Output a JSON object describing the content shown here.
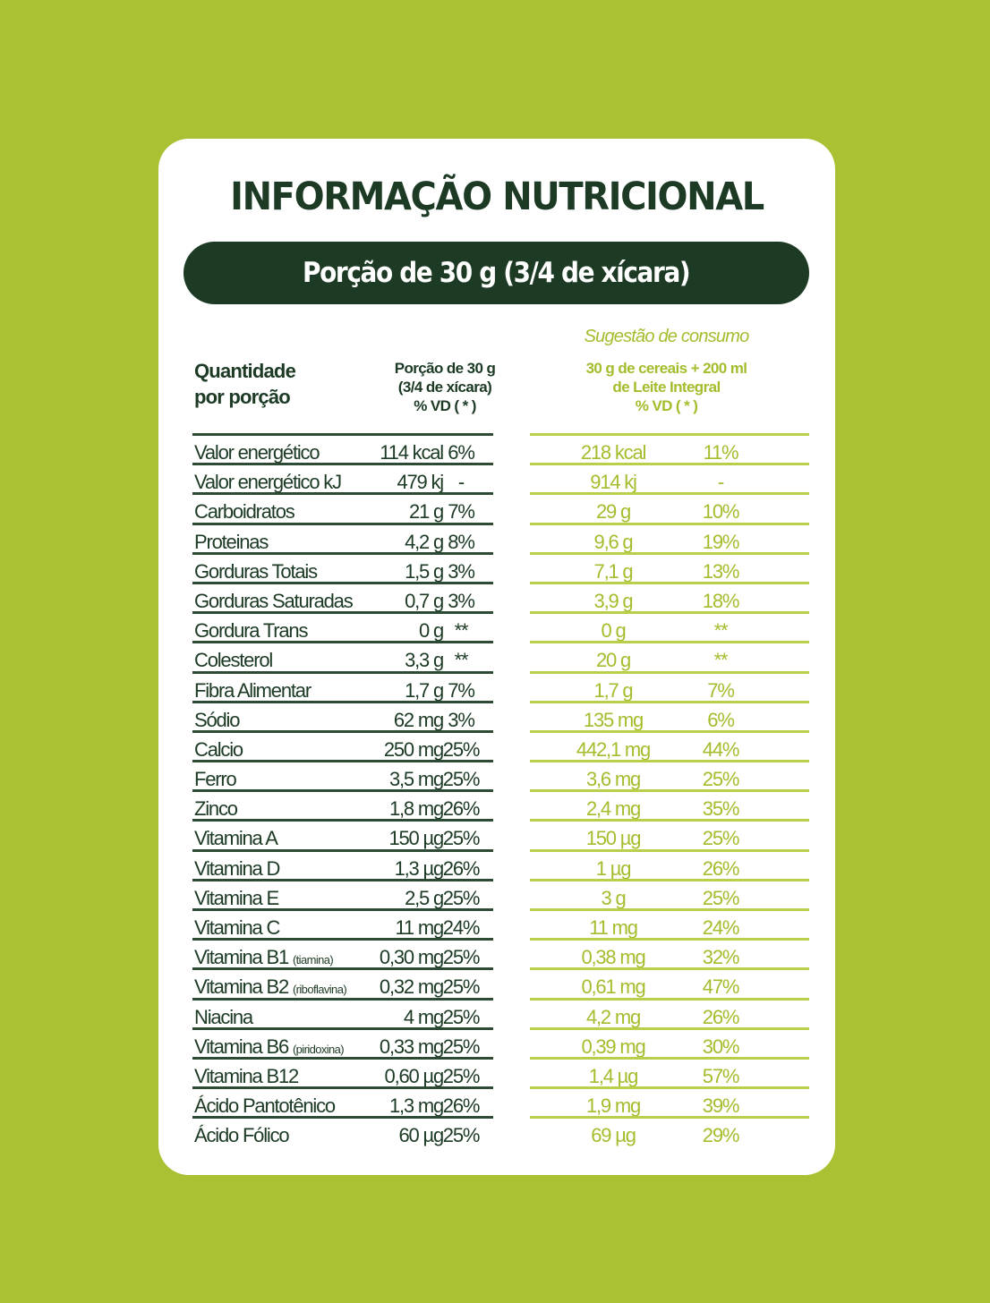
{
  "title": "INFORMAÇÃO NUTRICIONAL",
  "portion_banner": "Porção de 30 g (3/4 de xícara)",
  "suggestion_label": "Sugestão de consumo",
  "headers": {
    "left_line1": "Quantidade",
    "left_line2": "por porção",
    "mid_line1": "Porção de 30 g",
    "mid_line2": "(3/4 de xícara)",
    "mid_line3": "% VD ( * )",
    "right_line1": "30 g de cereais + 200 ml",
    "right_line2": "de Leite Integral",
    "right_line3": "% VD ( * )"
  },
  "colors": {
    "background": "#a9c132",
    "dark_green": "#1c3a24",
    "light_green": "#a3bd2d",
    "card": "#ffffff"
  },
  "rows": [
    {
      "name": "Valor energético",
      "sub": "",
      "portion": "114 kcal",
      "portion_vd": "6%",
      "suggestion": "218 kcal",
      "suggestion_vd": "11%"
    },
    {
      "name": "Valor energético kJ",
      "sub": "",
      "portion": "479 kj",
      "portion_vd": "-",
      "suggestion": "914 kj",
      "suggestion_vd": "-"
    },
    {
      "name": "Carboidratos",
      "sub": "",
      "portion": "21 g",
      "portion_vd": "7%",
      "suggestion": "29 g",
      "suggestion_vd": "10%"
    },
    {
      "name": "Proteinas",
      "sub": "",
      "portion": "4,2 g",
      "portion_vd": "8%",
      "suggestion": "9,6 g",
      "suggestion_vd": "19%"
    },
    {
      "name": "Gorduras Totais",
      "sub": "",
      "portion": "1,5 g",
      "portion_vd": "3%",
      "suggestion": "7,1 g",
      "suggestion_vd": "13%"
    },
    {
      "name": "Gorduras Saturadas",
      "sub": "",
      "portion": "0,7 g",
      "portion_vd": "3%",
      "suggestion": "3,9 g",
      "suggestion_vd": "18%"
    },
    {
      "name": "Gordura Trans",
      "sub": "",
      "portion": "0 g",
      "portion_vd": "**",
      "suggestion": "0 g",
      "suggestion_vd": "**"
    },
    {
      "name": "Colesterol",
      "sub": "",
      "portion": "3,3 g",
      "portion_vd": "**",
      "suggestion": "20 g",
      "suggestion_vd": "**"
    },
    {
      "name": "Fibra Alimentar",
      "sub": "",
      "portion": "1,7 g",
      "portion_vd": "7%",
      "suggestion": "1,7 g",
      "suggestion_vd": "7%"
    },
    {
      "name": "Sódio",
      "sub": "",
      "portion": "62 mg",
      "portion_vd": "3%",
      "suggestion": "135 mg",
      "suggestion_vd": "6%"
    },
    {
      "name": "Calcio",
      "sub": "",
      "portion": "250 mg",
      "portion_vd": "25%",
      "suggestion": "442,1 mg",
      "suggestion_vd": "44%"
    },
    {
      "name": "Ferro",
      "sub": "",
      "portion": "3,5 mg",
      "portion_vd": "25%",
      "suggestion": "3,6 mg",
      "suggestion_vd": "25%"
    },
    {
      "name": "Zinco",
      "sub": "",
      "portion": "1,8 mg",
      "portion_vd": "26%",
      "suggestion": "2,4 mg",
      "suggestion_vd": "35%"
    },
    {
      "name": "Vitamina A",
      "sub": "",
      "portion": "150 µg",
      "portion_vd": "25%",
      "suggestion": "150 µg",
      "suggestion_vd": "25%"
    },
    {
      "name": "Vitamina D",
      "sub": "",
      "portion": "1,3 µg",
      "portion_vd": "26%",
      "suggestion": "1 µg",
      "suggestion_vd": "26%"
    },
    {
      "name": "Vitamina E",
      "sub": "",
      "portion": "2,5 g",
      "portion_vd": "25%",
      "suggestion": "3 g",
      "suggestion_vd": "25%"
    },
    {
      "name": "Vitamina C",
      "sub": "",
      "portion": "11 mg",
      "portion_vd": "24%",
      "suggestion": "11 mg",
      "suggestion_vd": "24%"
    },
    {
      "name": "Vitamina B1 ",
      "sub": "(tiamina)",
      "portion": "0,30 mg",
      "portion_vd": "25%",
      "suggestion": "0,38 mg",
      "suggestion_vd": "32%"
    },
    {
      "name": "Vitamina B2 ",
      "sub": "(riboflavina)",
      "portion": "0,32 mg",
      "portion_vd": "25%",
      "suggestion": "0,61 mg",
      "suggestion_vd": "47%"
    },
    {
      "name": "Niacina",
      "sub": "",
      "portion": "4 mg",
      "portion_vd": "25%",
      "suggestion": "4,2 mg",
      "suggestion_vd": "26%"
    },
    {
      "name": "Vitamina B6 ",
      "sub": "(piridoxina)",
      "portion": "0,33 mg",
      "portion_vd": "25%",
      "suggestion": "0,39 mg",
      "suggestion_vd": "30%"
    },
    {
      "name": "Vitamina B12",
      "sub": "",
      "portion": "0,60 µg",
      "portion_vd": "25%",
      "suggestion": "1,4 µg",
      "suggestion_vd": "57%"
    },
    {
      "name": "Ácido Pantotênico",
      "sub": "",
      "portion": "1,3 mg",
      "portion_vd": "26%",
      "suggestion": "1,9 mg",
      "suggestion_vd": "39%"
    },
    {
      "name": "Ácido Fólico",
      "sub": "",
      "portion": "60 µg",
      "portion_vd": "25%",
      "suggestion": "69 µg",
      "suggestion_vd": "29%"
    }
  ]
}
